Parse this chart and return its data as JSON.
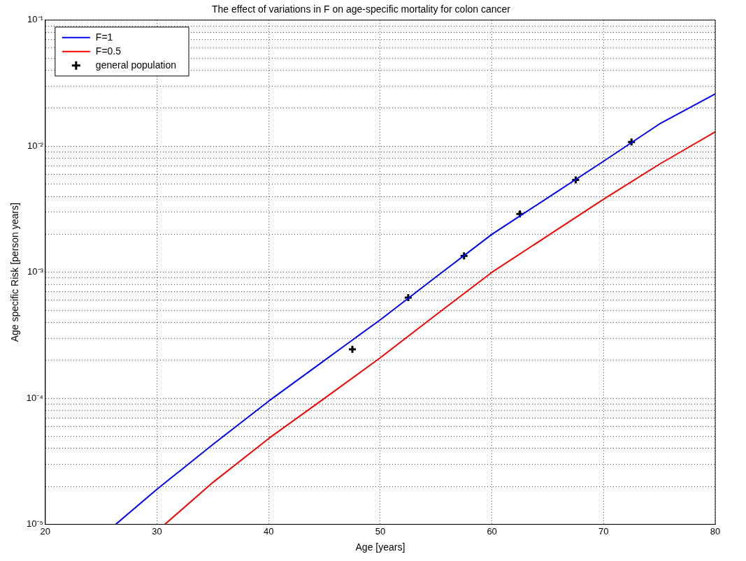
{
  "chart_data": {
    "type": "line",
    "title": "The effect of variations in F on age-specific mortality for colon cancer",
    "xlabel": "Age [years]",
    "ylabel": "Age specific Risk [person years]",
    "series": [
      {
        "name": "F=1",
        "type": "line",
        "color": "#0000ff",
        "marker": "none",
        "x": [
          26.3,
          30,
          35,
          40,
          45,
          50,
          55,
          60,
          65,
          70,
          75,
          80
        ],
        "values": [
          1e-05,
          1.9e-05,
          4.3e-05,
          9.5e-05,
          0.0002,
          0.00042,
          0.00092,
          0.002,
          0.0039,
          0.0076,
          0.015,
          0.026
        ]
      },
      {
        "name": "F=0.5",
        "type": "line",
        "color": "#ff0000",
        "marker": "none",
        "x": [
          30.7,
          35,
          40,
          45,
          50,
          55,
          60,
          65,
          70,
          75,
          80
        ],
        "values": [
          1e-05,
          2.15e-05,
          4.8e-05,
          0.0001,
          0.00021,
          0.00046,
          0.001,
          0.00195,
          0.0038,
          0.0072,
          0.013
        ]
      },
      {
        "name": "general population",
        "type": "scatter",
        "color": "#000000",
        "marker": "cross",
        "x": [
          47.5,
          52.5,
          57.5,
          62.5,
          67.5,
          72.5
        ],
        "values": [
          0.000245,
          0.00063,
          0.00135,
          0.0029,
          0.0054,
          0.0108
        ]
      }
    ],
    "xlim": [
      20,
      80
    ],
    "xticks": [
      20,
      30,
      40,
      50,
      60,
      70,
      80
    ],
    "ylim": [
      1e-05,
      0.1
    ],
    "log": "y",
    "yticks": [
      {
        "value": 1e-05,
        "label": "10⁻⁵"
      },
      {
        "value": 2e-05,
        "label": null
      },
      {
        "value": 3e-05,
        "label": null
      },
      {
        "value": 4e-05,
        "label": null
      },
      {
        "value": 5e-05,
        "label": null
      },
      {
        "value": 6e-05,
        "label": null
      },
      {
        "value": 7e-05,
        "label": null
      },
      {
        "value": 8e-05,
        "label": null
      },
      {
        "value": 9e-05,
        "label": null
      },
      {
        "value": 0.0001,
        "label": "10⁻⁴"
      },
      {
        "value": 0.0002,
        "label": null
      },
      {
        "value": 0.0003,
        "label": null
      },
      {
        "value": 0.0004,
        "label": null
      },
      {
        "value": 0.0005,
        "label": null
      },
      {
        "value": 0.0006,
        "label": null
      },
      {
        "value": 0.0007,
        "label": null
      },
      {
        "value": 0.0008,
        "label": null
      },
      {
        "value": 0.0009,
        "label": null
      },
      {
        "value": 0.001,
        "label": "10⁻³"
      },
      {
        "value": 0.002,
        "label": null
      },
      {
        "value": 0.003,
        "label": null
      },
      {
        "value": 0.004,
        "label": null
      },
      {
        "value": 0.005,
        "label": null
      },
      {
        "value": 0.006,
        "label": null
      },
      {
        "value": 0.007,
        "label": null
      },
      {
        "value": 0.008,
        "label": null
      },
      {
        "value": 0.009,
        "label": null
      },
      {
        "value": 0.01,
        "label": "10⁻²"
      },
      {
        "value": 0.02,
        "label": null
      },
      {
        "value": 0.03,
        "label": null
      },
      {
        "value": 0.04,
        "label": null
      },
      {
        "value": 0.05,
        "label": null
      },
      {
        "value": 0.06,
        "label": null
      },
      {
        "value": 0.07,
        "label": null
      },
      {
        "value": 0.08,
        "label": null
      },
      {
        "value": 0.09,
        "label": null
      },
      {
        "value": 0.1,
        "label": "10⁻¹"
      }
    ],
    "grid": true,
    "legend": "top left"
  }
}
